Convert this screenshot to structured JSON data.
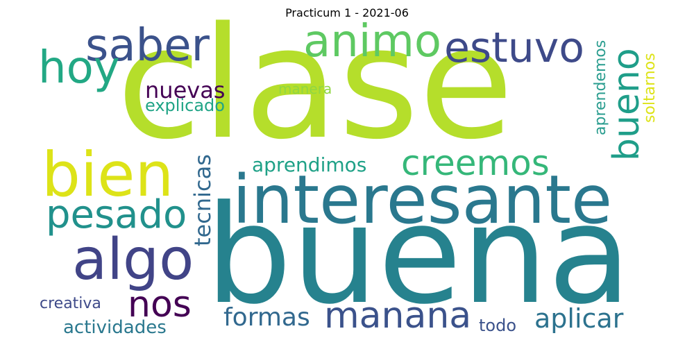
{
  "title": "Practicum 1 - 2021-06",
  "words": [
    {
      "id": "clase",
      "text": "clase",
      "color": "#b5de2b"
    },
    {
      "id": "buena",
      "text": "buena",
      "color": "#26828e"
    },
    {
      "id": "interesante",
      "text": "interesante",
      "color": "#2a788e"
    },
    {
      "id": "bien",
      "text": "bien",
      "color": "#dde318"
    },
    {
      "id": "algo",
      "text": "algo",
      "color": "#414487"
    },
    {
      "id": "saber",
      "text": "saber",
      "color": "#3b528b"
    },
    {
      "id": "hoy",
      "text": "hoy",
      "color": "#22a884"
    },
    {
      "id": "animo",
      "text": "animo",
      "color": "#5ec962"
    },
    {
      "id": "estuvo",
      "text": "estuvo",
      "color": "#3e4a89"
    },
    {
      "id": "bueno",
      "text": "bueno",
      "color": "#1f9e89"
    },
    {
      "id": "pesado",
      "text": "pesado",
      "color": "#21918c"
    },
    {
      "id": "creemos",
      "text": "creemos",
      "color": "#35b779"
    },
    {
      "id": "nos",
      "text": "nos",
      "color": "#440154"
    },
    {
      "id": "manana",
      "text": "manana",
      "color": "#3b528b"
    },
    {
      "id": "aplicar",
      "text": "aplicar",
      "color": "#2c728e"
    },
    {
      "id": "formas",
      "text": "formas",
      "color": "#31688e"
    },
    {
      "id": "nuevas",
      "text": "nuevas",
      "color": "#440154"
    },
    {
      "id": "explicado",
      "text": "explicado",
      "color": "#20a486"
    },
    {
      "id": "manera",
      "text": "manera",
      "color": "#90d743"
    },
    {
      "id": "aprendimos",
      "text": "aprendimos",
      "color": "#1fa187"
    },
    {
      "id": "tecnicas",
      "text": "tecnicas",
      "color": "#31688e"
    },
    {
      "id": "aprendemos",
      "text": "aprendemos",
      "color": "#2a9d8f"
    },
    {
      "id": "soltarnos",
      "text": "soltarnos",
      "color": "#dde318"
    },
    {
      "id": "creativa",
      "text": "creativa",
      "color": "#3e4a89"
    },
    {
      "id": "actividades",
      "text": "actividades",
      "color": "#2a788e"
    },
    {
      "id": "todo",
      "text": "todo",
      "color": "#3b528b"
    }
  ]
}
